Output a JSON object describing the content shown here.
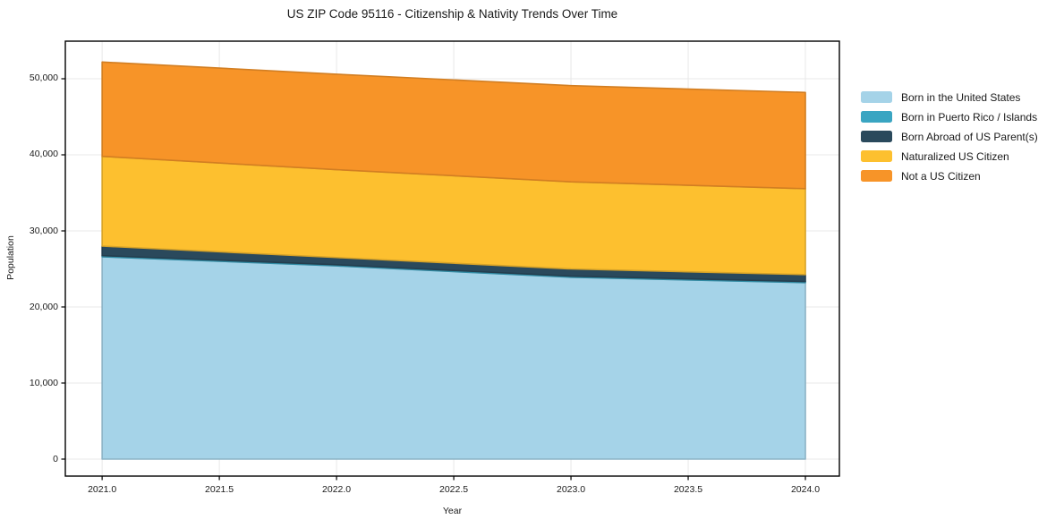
{
  "chart_data": {
    "type": "area",
    "stacked": true,
    "title": "US ZIP Code 95116 - Citizenship & Nativity Trends Over Time",
    "xlabel": "Year",
    "ylabel": "Population",
    "x": [
      2021,
      2022,
      2023,
      2024
    ],
    "series": [
      {
        "name": "Born in the United States",
        "color": "#A5D3E8",
        "values": [
          26600,
          25400,
          23900,
          23200
        ]
      },
      {
        "name": "Born in Puerto Rico / Islands",
        "color": "#3AA5C2",
        "values": [
          150,
          150,
          150,
          150
        ]
      },
      {
        "name": "Born Abroad of US Parent(s)",
        "color": "#2A495C",
        "values": [
          1250,
          950,
          950,
          900
        ]
      },
      {
        "name": "Naturalized US Citizen",
        "color": "#FDC02F",
        "values": [
          11800,
          11550,
          11450,
          11300
        ]
      },
      {
        "name": "Not a US Citizen",
        "color": "#F79428",
        "values": [
          12400,
          12550,
          12650,
          12650
        ]
      }
    ],
    "xlim": [
      2020.843,
      2024.145
    ],
    "ylim": [
      -2235,
      54941
    ],
    "xticks": {
      "values": [
        2021.0,
        2021.5,
        2022.0,
        2022.5,
        2023.0,
        2023.5,
        2024.0
      ],
      "labels": [
        "2021.0",
        "2021.5",
        "2022.0",
        "2022.5",
        "2023.0",
        "2023.5",
        "2024.0"
      ]
    },
    "yticks": {
      "values": [
        0,
        10000,
        20000,
        30000,
        40000,
        50000
      ],
      "labels": [
        "0",
        "10,000",
        "20,000",
        "30,000",
        "40,000",
        "50,000"
      ]
    },
    "grid": true,
    "legend_position": "right"
  },
  "colors": {
    "background": "#ffffff",
    "grid": "#e8e8e8",
    "frame": "#000000",
    "text": "#1a1a1a"
  }
}
